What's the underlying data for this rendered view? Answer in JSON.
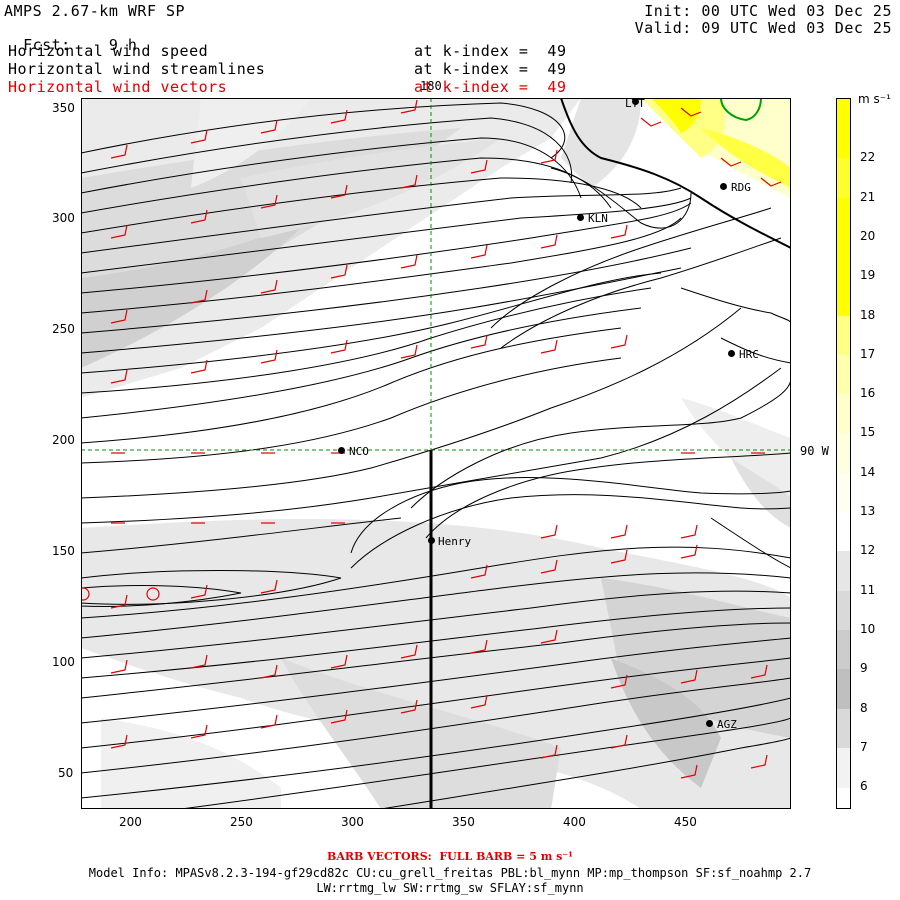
{
  "header": {
    "model": "AMPS 2.67-km WRF SP",
    "fcst_label": "Fcst:",
    "fcst_value": "9 h",
    "init": "Init: 00 UTC Wed 03 Dec 25",
    "valid": "Valid: 09 UTC Wed 03 Dec 25"
  },
  "fields": [
    {
      "label": "Horizontal wind speed",
      "level": "at k-index =  49",
      "color": "#000000"
    },
    {
      "label": "Horizontal wind streamlines",
      "level": "at k-index =  49",
      "color": "#000000"
    },
    {
      "label": "Horizontal wind vectors",
      "level": "at k-index =  49",
      "color": "#e00000"
    }
  ],
  "axes": {
    "x_ticks": [
      "200",
      "250",
      "300",
      "350",
      "400",
      "450"
    ],
    "y_ticks": [
      "350",
      "300",
      "250",
      "200",
      "150",
      "100",
      "50"
    ],
    "meridian_label_top": "180",
    "meridian_label_right": "90 W"
  },
  "stations": [
    {
      "name": "NCO"
    },
    {
      "name": "Henry"
    },
    {
      "name": "KLN"
    },
    {
      "name": "HRC"
    },
    {
      "name": "AGZ"
    },
    {
      "name": "RDG"
    },
    {
      "name": "LYT"
    }
  ],
  "colorbar": {
    "unit": "m s⁻¹",
    "values": [
      "22",
      "21",
      "20",
      "19",
      "18",
      "17",
      "16",
      "15",
      "14",
      "13",
      "12",
      "11",
      "10",
      "9",
      "8",
      "7",
      "6"
    ],
    "colors": [
      "#ffff00",
      "#ffff2e",
      "#ffff00",
      "#ffff00",
      "#ffff00",
      "#ffff85",
      "#ffffb0",
      "#ffffcc",
      "#ffffe0",
      "#fffff0",
      "#ffffff",
      "#e6e6e6",
      "#d9d9d9",
      "#cccccc",
      "#bfbfbf",
      "#d9d9d9",
      "#f2f2f2"
    ]
  },
  "footer": {
    "barb": "BARB VECTORS:  FULL BARB = 5 m s⁻¹",
    "model_info": "Model Info: MPASv8.2.3-194-gf29cd82c CU:cu_grell_freitas PBL:bl_mynn MP:mp_thompson SF:sf_noahmp 2.7",
    "model_info2": "LW:rrtmg_lw SW:rrtmg_sw SFLAY:sf_mynn"
  }
}
